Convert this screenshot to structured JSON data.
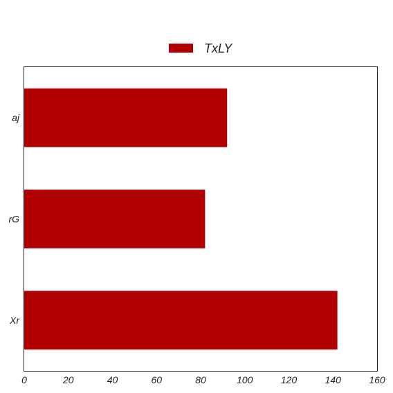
{
  "chart_data": {
    "type": "bar",
    "orientation": "horizontal",
    "categories": [
      "aj",
      "rG",
      "Xr"
    ],
    "series": [
      {
        "name": "TxLY",
        "values": [
          92,
          82,
          142
        ],
        "color": "#b00000"
      }
    ],
    "xlim": [
      0,
      160
    ],
    "xticks": [
      "0",
      "20",
      "40",
      "60",
      "80",
      "100",
      "120",
      "140",
      "160"
    ],
    "legend": {
      "position": "top-center"
    },
    "grid": false
  }
}
